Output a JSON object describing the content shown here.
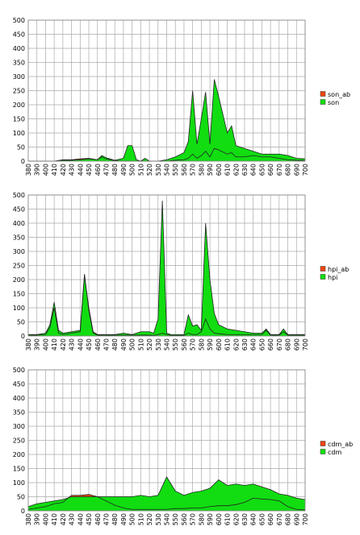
{
  "chart_data": [
    {
      "type": "area",
      "grid": true,
      "legend": "right",
      "x": [
        380,
        390,
        400,
        410,
        420,
        430,
        440,
        450,
        460,
        465,
        470,
        480,
        490,
        495,
        500,
        505,
        510,
        515,
        520,
        530,
        540,
        550,
        560,
        565,
        570,
        575,
        580,
        585,
        590,
        595,
        600,
        610,
        615,
        620,
        630,
        640,
        650,
        660,
        670,
        680,
        690,
        700
      ],
      "series": [
        {
          "name": "son_ab",
          "color": "#ee4411",
          "values": [
            0,
            0,
            0,
            0,
            5,
            5,
            8,
            10,
            5,
            15,
            8,
            2,
            0,
            0,
            0,
            0,
            0,
            0,
            0,
            0,
            0,
            3,
            5,
            10,
            25,
            10,
            20,
            35,
            15,
            45,
            40,
            25,
            30,
            15,
            15,
            20,
            15,
            15,
            10,
            5,
            3,
            2
          ]
        },
        {
          "name": "son",
          "color": "#11dd11",
          "values": [
            0,
            0,
            0,
            0,
            3,
            3,
            5,
            8,
            5,
            20,
            12,
            3,
            10,
            55,
            55,
            5,
            0,
            10,
            0,
            0,
            5,
            15,
            30,
            70,
            250,
            60,
            150,
            245,
            60,
            290,
            230,
            100,
            125,
            55,
            45,
            35,
            25,
            25,
            25,
            20,
            10,
            8
          ]
        }
      ],
      "xlim": [
        380,
        700
      ],
      "xticks": [
        380,
        390,
        400,
        410,
        420,
        430,
        440,
        450,
        460,
        470,
        480,
        490,
        500,
        510,
        520,
        530,
        540,
        550,
        560,
        570,
        580,
        590,
        600,
        610,
        620,
        630,
        640,
        650,
        660,
        670,
        680,
        690,
        700
      ],
      "ylim": [
        0,
        500
      ],
      "yticks": [
        0,
        50,
        100,
        150,
        200,
        250,
        300,
        350,
        400,
        450,
        500
      ]
    },
    {
      "type": "area",
      "grid": true,
      "legend": "right",
      "x": [
        380,
        390,
        400,
        405,
        410,
        415,
        420,
        430,
        440,
        445,
        450,
        455,
        460,
        470,
        480,
        490,
        500,
        510,
        520,
        525,
        530,
        535,
        540,
        545,
        550,
        560,
        565,
        570,
        575,
        580,
        585,
        590,
        595,
        600,
        610,
        620,
        630,
        640,
        650,
        655,
        660,
        670,
        675,
        680,
        690,
        700
      ],
      "series": [
        {
          "name": "hpi_ab",
          "color": "#ee4411",
          "values": [
            3,
            3,
            5,
            30,
            100,
            10,
            5,
            10,
            15,
            220,
            90,
            10,
            3,
            3,
            3,
            3,
            3,
            3,
            3,
            2,
            5,
            10,
            5,
            2,
            2,
            2,
            10,
            5,
            5,
            15,
            60,
            25,
            10,
            8,
            5,
            5,
            5,
            5,
            5,
            20,
            3,
            3,
            15,
            3,
            3,
            3
          ]
        },
        {
          "name": "hpi",
          "color": "#11dd11",
          "values": [
            5,
            5,
            10,
            40,
            120,
            20,
            10,
            15,
            20,
            215,
            100,
            15,
            5,
            5,
            5,
            10,
            5,
            15,
            15,
            10,
            60,
            480,
            10,
            5,
            5,
            5,
            75,
            35,
            40,
            20,
            400,
            200,
            80,
            40,
            25,
            20,
            15,
            10,
            10,
            25,
            5,
            5,
            25,
            5,
            5,
            5
          ]
        }
      ],
      "xlim": [
        380,
        700
      ],
      "xticks": [
        380,
        390,
        400,
        410,
        420,
        430,
        440,
        450,
        460,
        470,
        480,
        490,
        500,
        510,
        520,
        530,
        540,
        550,
        560,
        570,
        580,
        590,
        600,
        610,
        620,
        630,
        640,
        650,
        660,
        670,
        680,
        690,
        700
      ],
      "ylim": [
        0,
        500
      ],
      "yticks": [
        0,
        50,
        100,
        150,
        200,
        250,
        300,
        350,
        400,
        450,
        500
      ]
    },
    {
      "type": "area",
      "grid": true,
      "legend": "right",
      "x": [
        380,
        390,
        400,
        410,
        420,
        430,
        440,
        450,
        460,
        470,
        480,
        490,
        500,
        510,
        520,
        530,
        540,
        550,
        560,
        570,
        580,
        590,
        600,
        610,
        620,
        630,
        640,
        650,
        660,
        670,
        680,
        690,
        700
      ],
      "series": [
        {
          "name": "cdm_ab",
          "color": "#ee4411",
          "values": [
            5,
            10,
            15,
            25,
            30,
            55,
            55,
            58,
            50,
            35,
            20,
            10,
            5,
            5,
            5,
            5,
            5,
            8,
            8,
            10,
            10,
            15,
            18,
            18,
            22,
            30,
            45,
            42,
            40,
            35,
            15,
            5,
            3
          ]
        },
        {
          "name": "cdm",
          "color": "#11dd11",
          "values": [
            15,
            25,
            30,
            35,
            40,
            50,
            50,
            50,
            50,
            50,
            50,
            50,
            50,
            55,
            50,
            55,
            120,
            70,
            55,
            65,
            70,
            80,
            110,
            90,
            95,
            90,
            95,
            85,
            75,
            60,
            55,
            45,
            40
          ]
        }
      ],
      "xlim": [
        380,
        700
      ],
      "xticks": [
        380,
        390,
        400,
        410,
        420,
        430,
        440,
        450,
        460,
        470,
        480,
        490,
        500,
        510,
        520,
        530,
        540,
        550,
        560,
        570,
        580,
        590,
        600,
        610,
        620,
        630,
        640,
        650,
        660,
        670,
        680,
        690,
        700
      ],
      "ylim": [
        0,
        500
      ],
      "yticks": [
        0,
        50,
        100,
        150,
        200,
        250,
        300,
        350,
        400,
        450,
        500
      ]
    }
  ]
}
